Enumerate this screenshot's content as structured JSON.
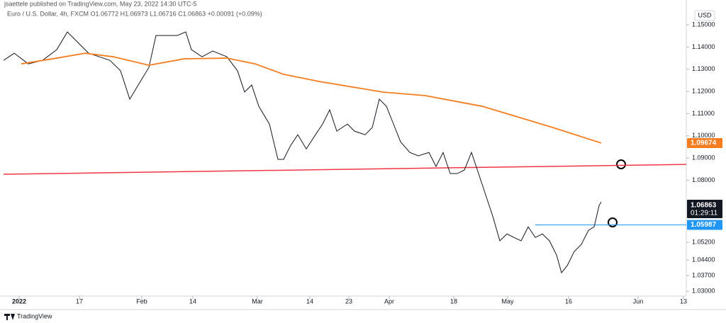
{
  "header": {
    "publisher": "jsaettele published on TradingView.com, May 23, 2022 14:30 UTC-5",
    "symbol_line": "Euro / U.S. Dollar, 4h, FXCM  O1.06772 H1.06973 L1.06716 C1.06863 +0.00091 (+0.09%)"
  },
  "footer": {
    "brand": "TradingView"
  },
  "chart_data": {
    "type": "line",
    "currency": "USD",
    "xlim": [
      0,
      963
    ],
    "ylim": [
      1.0278,
      1.1548
    ],
    "xticks": [
      {
        "value": 22,
        "label": "2022"
      },
      {
        "value": 107,
        "label": "17"
      },
      {
        "value": 195,
        "label": "Feb"
      },
      {
        "value": 267,
        "label": "14"
      },
      {
        "value": 358,
        "label": "Mar"
      },
      {
        "value": 432,
        "label": "14"
      },
      {
        "value": 487,
        "label": "23"
      },
      {
        "value": 544,
        "label": "Apr"
      },
      {
        "value": 635,
        "label": "18"
      },
      {
        "value": 711,
        "label": "May"
      },
      {
        "value": 797,
        "label": "16"
      },
      {
        "value": 895,
        "label": "Jun"
      },
      {
        "value": 959,
        "label": "13"
      }
    ],
    "yticks": [
      {
        "value": 1.15,
        "label": "1.15000"
      },
      {
        "value": 1.14,
        "label": "1.14000"
      },
      {
        "value": 1.13,
        "label": "1.13000"
      },
      {
        "value": 1.12,
        "label": "1.12000"
      },
      {
        "value": 1.11,
        "label": "1.11000"
      },
      {
        "value": 1.1,
        "label": "1.10000"
      },
      {
        "value": 1.09,
        "label": "1.09000"
      },
      {
        "value": 1.08,
        "label": "1.08000"
      },
      {
        "value": 1.052,
        "label": "1.05200"
      },
      {
        "value": 1.044,
        "label": "1.04400"
      },
      {
        "value": 1.037,
        "label": "1.03700"
      },
      {
        "value": 1.03,
        "label": "1.03000"
      }
    ],
    "series": [
      {
        "color": "#131722",
        "x": [
          0,
          15,
          35,
          55,
          75,
          90,
          105,
          120,
          135,
          150,
          165,
          178,
          190,
          205,
          215,
          230,
          245,
          257,
          265,
          280,
          295,
          315,
          330,
          340,
          350,
          360,
          375,
          387,
          395,
          405,
          415,
          427,
          440,
          450,
          460,
          470,
          485,
          495,
          510,
          520,
          530,
          540,
          550,
          560,
          573,
          585,
          600,
          610,
          620,
          630,
          640,
          650,
          660,
          670,
          680,
          690,
          700,
          710,
          720,
          730,
          740,
          750,
          760,
          770,
          780,
          787,
          795,
          805,
          815,
          825,
          833,
          840,
          843
        ],
        "values": [
          1.134,
          1.1372,
          1.1324,
          1.134,
          1.1388,
          1.1468,
          1.142,
          1.1372,
          1.1356,
          1.134,
          1.1293,
          1.1165,
          1.1229,
          1.1308,
          1.1452,
          1.1452,
          1.1452,
          1.1468,
          1.1388,
          1.1356,
          1.1382,
          1.1356,
          1.1293,
          1.1197,
          1.1229,
          1.1133,
          1.1053,
          1.0894,
          1.0894,
          1.0957,
          1.1005,
          1.0941,
          1.1005,
          1.1053,
          1.1117,
          1.1021,
          1.1053,
          1.1021,
          1.1005,
          1.1037,
          1.1165,
          1.1133,
          1.1053,
          1.0973,
          1.0925,
          1.091,
          1.0925,
          1.0862,
          1.0925,
          1.083,
          1.083,
          1.0846,
          1.0925,
          1.083,
          1.0734,
          1.0638,
          1.0527,
          1.0558,
          1.0542,
          1.0527,
          1.059,
          1.0542,
          1.0558,
          1.0527,
          1.0463,
          1.0383,
          1.0415,
          1.0479,
          1.0511,
          1.0574,
          1.059,
          1.0686,
          1.0702
        ]
      },
      {
        "color": "#f57c1f",
        "x": [
          25,
          75,
          115,
          155,
          205,
          255,
          315,
          355,
          395,
          445,
          535,
          595,
          675,
          715,
          775,
          843
        ],
        "values": [
          1.1324,
          1.135,
          1.1372,
          1.1356,
          1.1318,
          1.1347,
          1.135,
          1.1324,
          1.1277,
          1.1245,
          1.1197,
          1.1181,
          1.1133,
          1.1095,
          1.1037,
          1.09674
        ]
      }
    ],
    "trend_line": {
      "x": [
        0,
        963
      ],
      "values": [
        1.0827,
        1.0871
      ],
      "color": "#f23645"
    },
    "horizontal_line": {
      "x": [
        750,
        963
      ],
      "value": 1.05987,
      "color": "#2196f3"
    },
    "price_tags": [
      {
        "value": 1.09674,
        "label": "1.09674",
        "color": "#f57c1f"
      },
      {
        "value": 1.06863,
        "label": "1.06863",
        "timer": "01:29:11",
        "color": "#131722"
      },
      {
        "value": 1.05987,
        "label": "1.05987",
        "color": "#2196f3"
      }
    ]
  }
}
